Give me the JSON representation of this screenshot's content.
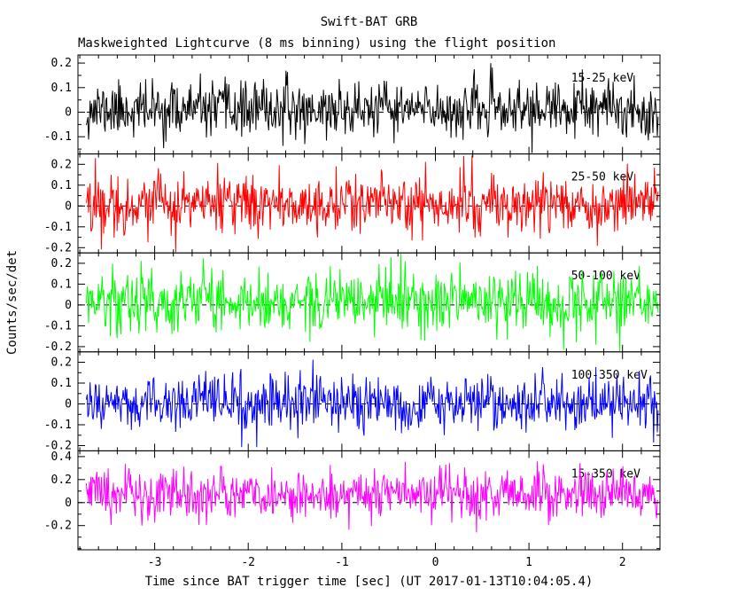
{
  "chart_data": {
    "type": "line",
    "title": "Swift-BAT GRB",
    "subtitle": "Maskweighted Lightcurve (8 ms binning) using the flight position",
    "xlabel": "Time since BAT trigger time [sec] (UT 2017-01-13T10:04:05.4)",
    "ylabel": "Counts/sec/det",
    "xlim": [
      -3.82,
      2.4
    ],
    "xticks": [
      -3,
      -2,
      -1,
      0,
      1,
      2
    ],
    "x_minor_step": 0.2,
    "data_x_start": -3.73,
    "data_x_end": 2.38,
    "n_points": 763,
    "band_label_x": 1.45,
    "zero_line_style": "dashed",
    "grid": "off",
    "panels": [
      {
        "label": "15-25 keV",
        "color": "#000000",
        "ylim": [
          -0.17,
          0.233
        ],
        "yticks": [
          0.2,
          0.1,
          0,
          -0.1
        ],
        "y_minor_step": 0.05,
        "mean": 0.01,
        "sigma": 0.055,
        "seed": 11
      },
      {
        "label": "25-50 keV",
        "color": "#ff0000",
        "ylim": [
          -0.225,
          0.25
        ],
        "yticks": [
          0.2,
          0.1,
          0,
          -0.1,
          -0.2
        ],
        "y_minor_step": 0.05,
        "mean": 0.01,
        "sigma": 0.07,
        "seed": 22
      },
      {
        "label": "50-100 keV",
        "color": "#00ff00",
        "ylim": [
          -0.225,
          0.25
        ],
        "yticks": [
          0.2,
          0.1,
          0,
          -0.1,
          -0.2
        ],
        "y_minor_step": 0.05,
        "mean": 0.015,
        "sigma": 0.075,
        "seed": 33
      },
      {
        "label": "100-350 keV",
        "color": "#0000ff",
        "ylim": [
          -0.225,
          0.25
        ],
        "yticks": [
          0.2,
          0.1,
          0,
          -0.1,
          -0.2
        ],
        "y_minor_step": 0.05,
        "mean": 0.0,
        "sigma": 0.065,
        "seed": 44
      },
      {
        "label": "15-350 keV",
        "color": "#ff00ff",
        "ylim": [
          -0.41,
          0.45
        ],
        "yticks": [
          0.4,
          0.2,
          0,
          -0.2
        ],
        "y_minor_step": 0.1,
        "mean": 0.07,
        "sigma": 0.11,
        "seed": 55
      }
    ]
  }
}
